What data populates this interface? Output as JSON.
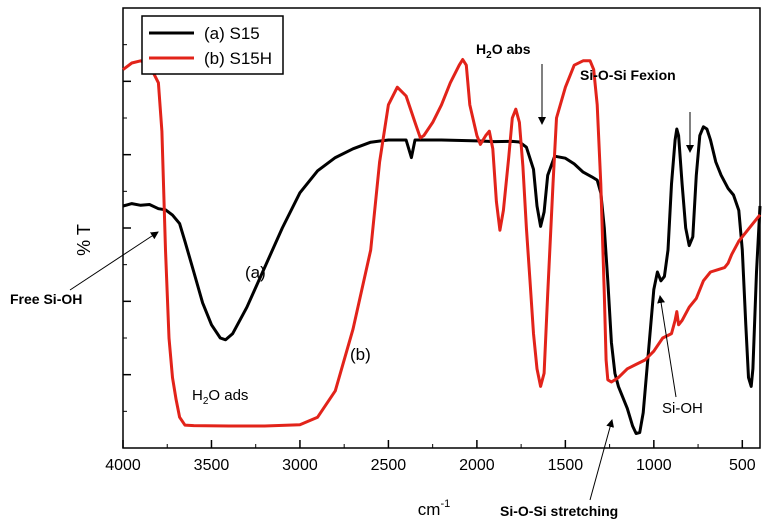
{
  "chart_data": {
    "type": "line",
    "title": "",
    "xlabel": "cm",
    "xlabel_superscript": "-1",
    "ylabel": "% T",
    "xlim": [
      4000,
      400
    ],
    "x_reversed": true,
    "ylim": [
      0,
      100
    ],
    "y_tick_labels_shown": false,
    "x_ticks": [
      4000,
      3500,
      3000,
      2500,
      2000,
      1500,
      1000,
      500
    ],
    "x_tick_labels": [
      "4000",
      "3500",
      "3000",
      "2500",
      "2000",
      "1500",
      "1000",
      "500"
    ],
    "legend_position": "top-left",
    "series": [
      {
        "name": "(a) S15",
        "label": "(a)",
        "color": "#000000",
        "points": [
          [
            4000,
            55
          ],
          [
            3950,
            55.2
          ],
          [
            3900,
            54.8
          ],
          [
            3850,
            55.3
          ],
          [
            3800,
            54.7
          ],
          [
            3760,
            54.5
          ],
          [
            3720,
            53
          ],
          [
            3680,
            51
          ],
          [
            3650,
            47
          ],
          [
            3600,
            40
          ],
          [
            3550,
            33
          ],
          [
            3500,
            28
          ],
          [
            3450,
            25
          ],
          [
            3420,
            24.6
          ],
          [
            3380,
            26
          ],
          [
            3300,
            32
          ],
          [
            3200,
            41
          ],
          [
            3100,
            50
          ],
          [
            3000,
            58
          ],
          [
            2900,
            63
          ],
          [
            2800,
            66
          ],
          [
            2700,
            68
          ],
          [
            2600,
            69.5
          ],
          [
            2500,
            70
          ],
          [
            2400,
            70
          ],
          [
            2370,
            66
          ],
          [
            2350,
            70
          ],
          [
            2200,
            70
          ],
          [
            2000,
            69.8
          ],
          [
            1900,
            70
          ],
          [
            1800,
            70
          ],
          [
            1760,
            69.5
          ],
          [
            1720,
            68
          ],
          [
            1680,
            63
          ],
          [
            1660,
            55
          ],
          [
            1640,
            50.7
          ],
          [
            1620,
            54
          ],
          [
            1600,
            62
          ],
          [
            1560,
            66
          ],
          [
            1500,
            65.5
          ],
          [
            1450,
            64.5
          ],
          [
            1400,
            63
          ],
          [
            1350,
            62
          ],
          [
            1320,
            61
          ],
          [
            1300,
            58
          ],
          [
            1280,
            50
          ],
          [
            1260,
            38
          ],
          [
            1240,
            24
          ],
          [
            1220,
            17
          ],
          [
            1200,
            14
          ],
          [
            1150,
            9
          ],
          [
            1120,
            5
          ],
          [
            1100,
            3.3
          ],
          [
            1080,
            3.5
          ],
          [
            1060,
            8
          ],
          [
            1030,
            22
          ],
          [
            1000,
            36
          ],
          [
            980,
            40
          ],
          [
            960,
            38
          ],
          [
            940,
            39
          ],
          [
            920,
            45
          ],
          [
            900,
            60
          ],
          [
            880,
            70
          ],
          [
            870,
            72.5
          ],
          [
            860,
            71
          ],
          [
            840,
            60
          ],
          [
            820,
            50
          ],
          [
            800,
            46
          ],
          [
            780,
            48
          ],
          [
            760,
            62
          ],
          [
            740,
            71
          ],
          [
            720,
            73
          ],
          [
            700,
            72.5
          ],
          [
            680,
            70
          ],
          [
            650,
            65
          ],
          [
            620,
            62
          ],
          [
            580,
            59
          ],
          [
            550,
            57.5
          ],
          [
            520,
            54
          ],
          [
            500,
            45
          ],
          [
            480,
            28
          ],
          [
            465,
            16
          ],
          [
            450,
            14
          ],
          [
            440,
            18
          ],
          [
            420,
            40
          ],
          [
            400,
            55
          ]
        ]
      },
      {
        "name": "(b) S15H",
        "label": "(b)",
        "color": "#e2231a",
        "points": [
          [
            4000,
            86
          ],
          [
            3950,
            87.5
          ],
          [
            3900,
            88
          ],
          [
            3850,
            87
          ],
          [
            3800,
            83
          ],
          [
            3780,
            72
          ],
          [
            3760,
            45
          ],
          [
            3740,
            25
          ],
          [
            3720,
            16
          ],
          [
            3700,
            11
          ],
          [
            3680,
            7
          ],
          [
            3650,
            5.2
          ],
          [
            3600,
            5.1
          ],
          [
            3400,
            5
          ],
          [
            3200,
            5
          ],
          [
            3000,
            5.3
          ],
          [
            2900,
            7
          ],
          [
            2800,
            13
          ],
          [
            2700,
            27
          ],
          [
            2600,
            45
          ],
          [
            2550,
            65
          ],
          [
            2500,
            78
          ],
          [
            2450,
            82
          ],
          [
            2400,
            80
          ],
          [
            2350,
            74
          ],
          [
            2320,
            70.5
          ],
          [
            2300,
            71
          ],
          [
            2250,
            74
          ],
          [
            2200,
            78
          ],
          [
            2150,
            83
          ],
          [
            2100,
            87
          ],
          [
            2080,
            88.3
          ],
          [
            2060,
            87
          ],
          [
            2040,
            78
          ],
          [
            2000,
            71
          ],
          [
            1980,
            69
          ],
          [
            1950,
            71
          ],
          [
            1930,
            72
          ],
          [
            1910,
            68
          ],
          [
            1890,
            56
          ],
          [
            1870,
            49.5
          ],
          [
            1850,
            54
          ],
          [
            1820,
            66
          ],
          [
            1800,
            75
          ],
          [
            1780,
            77
          ],
          [
            1760,
            74
          ],
          [
            1740,
            64
          ],
          [
            1720,
            50
          ],
          [
            1700,
            38
          ],
          [
            1680,
            26
          ],
          [
            1660,
            18
          ],
          [
            1640,
            14
          ],
          [
            1620,
            17
          ],
          [
            1600,
            35
          ],
          [
            1570,
            60
          ],
          [
            1550,
            75
          ],
          [
            1500,
            82
          ],
          [
            1450,
            87
          ],
          [
            1400,
            88
          ],
          [
            1360,
            88
          ],
          [
            1340,
            86
          ],
          [
            1320,
            78
          ],
          [
            1300,
            60
          ],
          [
            1280,
            35
          ],
          [
            1270,
            20
          ],
          [
            1260,
            15.5
          ],
          [
            1240,
            15
          ],
          [
            1200,
            16
          ],
          [
            1150,
            18
          ],
          [
            1100,
            19
          ],
          [
            1050,
            20
          ],
          [
            1000,
            22
          ],
          [
            950,
            25
          ],
          [
            900,
            26
          ],
          [
            880,
            29
          ],
          [
            870,
            31
          ],
          [
            860,
            28
          ],
          [
            840,
            29
          ],
          [
            800,
            32
          ],
          [
            760,
            34
          ],
          [
            720,
            38
          ],
          [
            680,
            40
          ],
          [
            640,
            40.5
          ],
          [
            600,
            41
          ],
          [
            580,
            42
          ],
          [
            560,
            44
          ],
          [
            520,
            47
          ],
          [
            480,
            49
          ],
          [
            440,
            51
          ],
          [
            400,
            53
          ]
        ]
      }
    ],
    "annotations": [
      {
        "text": "(a)",
        "at": [
          3100,
          40
        ]
      },
      {
        "text": "(b)",
        "at": [
          2600,
          20
        ]
      },
      {
        "text": "H",
        "sub": "2",
        "rest": "O ads",
        "at": [
          3560,
          12
        ]
      },
      {
        "text": "Free Si-OH",
        "bold": true,
        "arrow_to": [
          3740,
          54
        ]
      },
      {
        "text": "H",
        "sub": "2",
        "rest": "O abs",
        "bold": true,
        "arrow_to": [
          1640,
          75
        ]
      },
      {
        "text": "Si-O-Si Fexion",
        "bold": true,
        "arrow_to": [
          790,
          74
        ]
      },
      {
        "text": "Si-OH",
        "arrow_to": [
          980,
          38
        ]
      },
      {
        "text": "Si-O-Si stretching",
        "bold": true,
        "arrow_to": [
          1240,
          14
        ]
      }
    ]
  }
}
